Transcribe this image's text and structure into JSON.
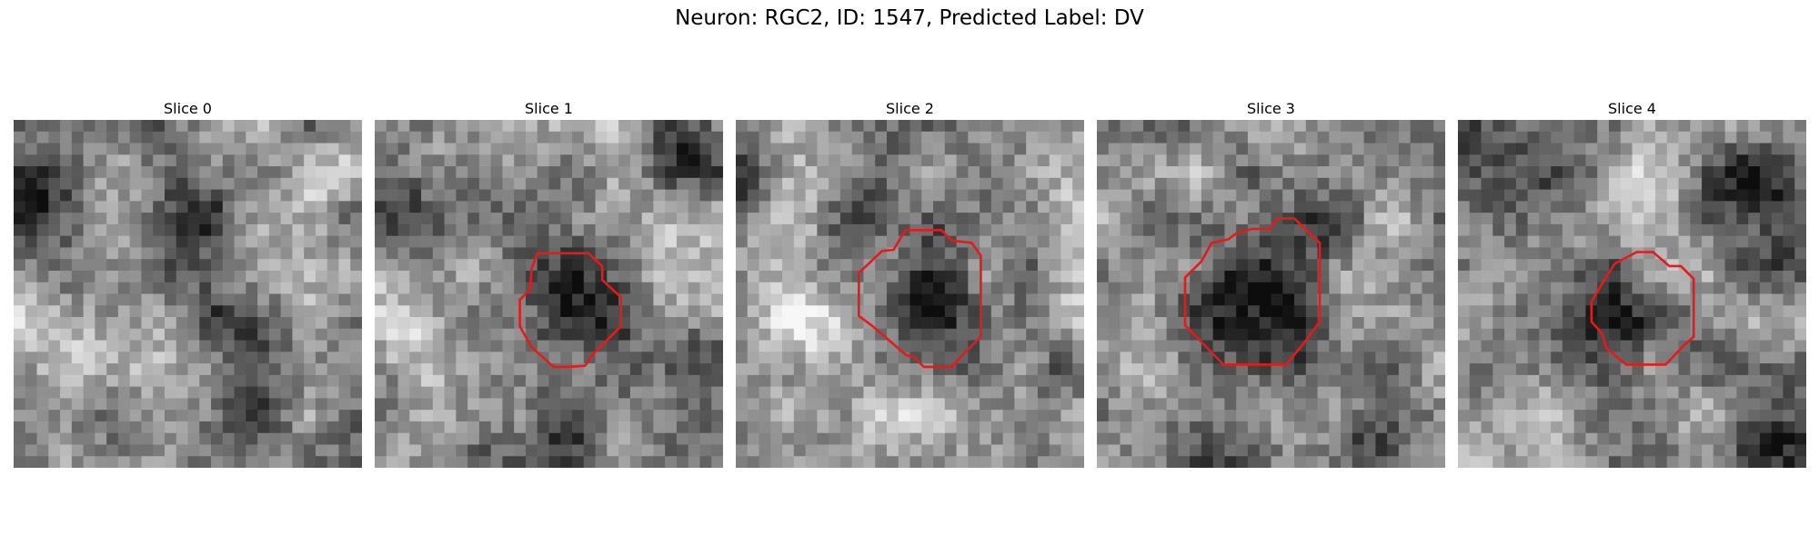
{
  "figure": {
    "title": "Neuron: RGC2, ID: 1547, Predicted Label: DV"
  },
  "panels": [
    {
      "title": "Slice 0",
      "has_contour": false
    },
    {
      "title": "Slice 1",
      "has_contour": true
    },
    {
      "title": "Slice 2",
      "has_contour": true
    },
    {
      "title": "Slice 3",
      "has_contour": true
    },
    {
      "title": "Slice 4",
      "has_contour": true
    }
  ],
  "colors": {
    "contour": "#e41a1c"
  },
  "colormap": "grayscale"
}
